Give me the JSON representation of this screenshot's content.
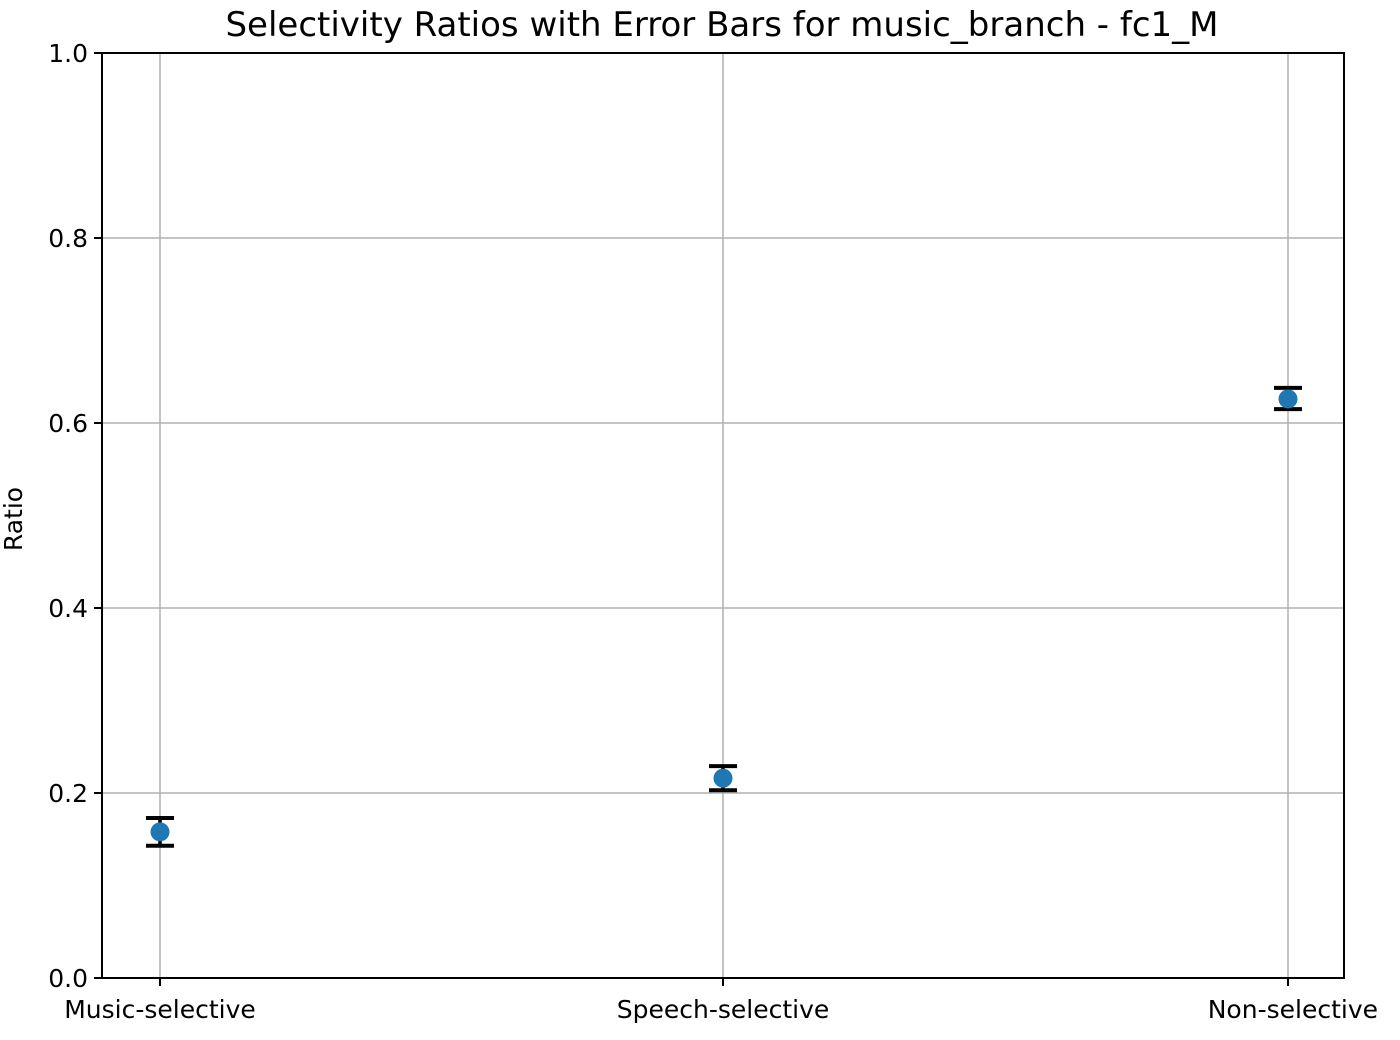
{
  "chart_data": {
    "type": "scatter",
    "title": "Selectivity Ratios with Error Bars for music_branch - fc1_M",
    "xlabel": "",
    "ylabel": "Ratio",
    "categories": [
      "Music-selective",
      "Speech-selective",
      "Non-selective"
    ],
    "series": [
      {
        "values": [
          0.158,
          0.216,
          0.626
        ],
        "error_lower": [
          0.143,
          0.203,
          0.615
        ],
        "error_upper": [
          0.173,
          0.229,
          0.638
        ],
        "color": "#1f77b4"
      }
    ],
    "ylim": [
      0.0,
      1.0
    ],
    "yticks": [
      "0.0",
      "0.2",
      "0.4",
      "0.6",
      "0.8",
      "1.0"
    ],
    "grid": true,
    "error_bar_color": "#000000"
  }
}
